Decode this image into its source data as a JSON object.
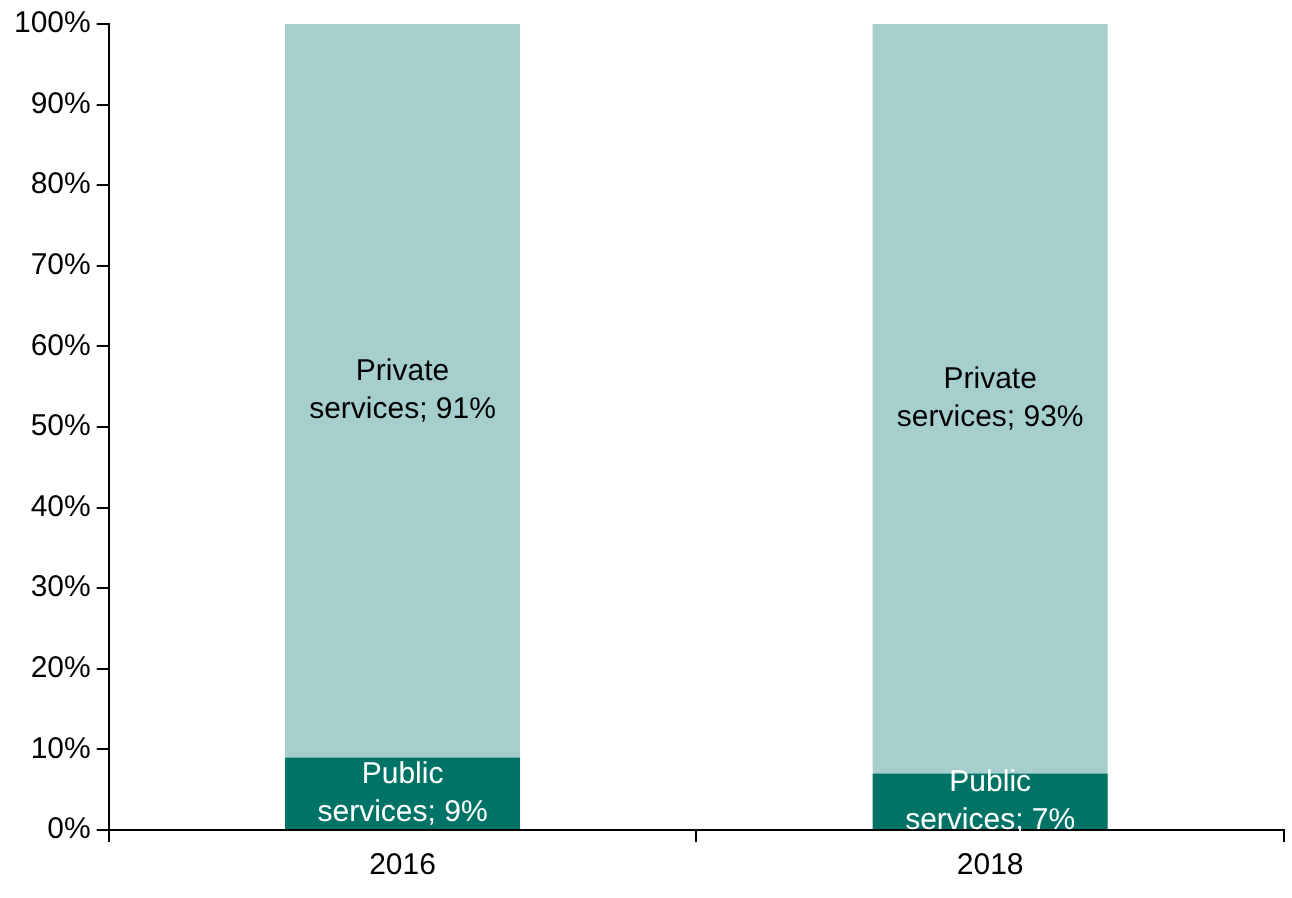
{
  "chart_data": {
    "type": "bar",
    "stacked": true,
    "categories": [
      "2016",
      "2018"
    ],
    "series": [
      {
        "color": "#007367",
        "values": [
          9,
          7
        ],
        "value_labels": [
          "Public services; 9%",
          "Public services; 7%"
        ]
      },
      {
        "color": "#a6cecc",
        "values": [
          91,
          93
        ],
        "value_labels": [
          "Private services; 91%",
          "Private services; 93%"
        ]
      }
    ],
    "ylim": [
      0,
      100
    ],
    "yticks": [
      {
        "value": 0,
        "label": "0%"
      },
      {
        "value": 10,
        "label": "10%"
      },
      {
        "value": 20,
        "label": "20%"
      },
      {
        "value": 30,
        "label": "30%"
      },
      {
        "value": 40,
        "label": "40%"
      },
      {
        "value": 50,
        "label": "50%"
      },
      {
        "value": 60,
        "label": "60%"
      },
      {
        "value": 70,
        "label": "70%"
      },
      {
        "value": 80,
        "label": "80%"
      },
      {
        "value": 90,
        "label": "90%"
      },
      {
        "value": 100,
        "label": "100%"
      }
    ],
    "grid": false,
    "legend": false
  }
}
